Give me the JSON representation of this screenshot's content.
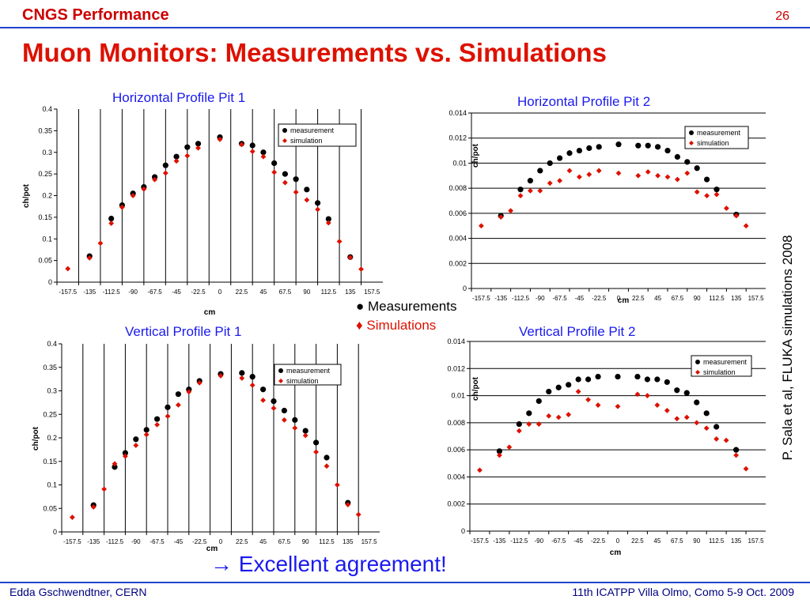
{
  "header": {
    "title": "CNGS Performance",
    "page_number": "26"
  },
  "main_title": "Muon Monitors: Measurements vs. Simulations",
  "key": {
    "measurements": "Measurements",
    "simulations": "Simulations",
    "measurements_color": "#000000",
    "simulations_color": "#dd1100"
  },
  "conclusion": "Excellent agreement!",
  "side_reference": "P. Sala et al, FLUKA simulations 2008",
  "footer": {
    "left": "Edda Gschwendtner, CERN",
    "right": "11th ICATPP Villa Olmo, Como 5-9 Oct. 2009"
  },
  "chart_data": [
    {
      "type": "scatter",
      "title": "Horizontal Profile Pit 1",
      "xlabel": "cm",
      "ylabel": "ch/pot",
      "categories": [
        "-157.5",
        "-135",
        "-112.5",
        "-90",
        "-67.5",
        "-45",
        "-22.5",
        "0",
        "22.5",
        "45",
        "67.5",
        "90",
        "112.5",
        "135",
        "157.5"
      ],
      "ylim": [
        0,
        0.4
      ],
      "yticks": [
        "0",
        "0.05",
        "0.1",
        "0.15",
        "0.2",
        "0.25",
        "0.3",
        "0.35",
        "0.4"
      ],
      "grid": "vertical",
      "legend": "top-right",
      "series": [
        {
          "name": "measurement",
          "x": [
            -135,
            -112.5,
            -101.25,
            -90,
            -78.75,
            -67.5,
            -56.25,
            -45,
            -33.75,
            -22.5,
            0,
            22.5,
            33.75,
            45,
            56.25,
            67.5,
            78.75,
            90,
            101.25,
            112.5,
            135
          ],
          "y": [
            0.06,
            0.147,
            0.178,
            0.205,
            0.22,
            0.243,
            0.27,
            0.29,
            0.312,
            0.32,
            0.335,
            0.32,
            0.316,
            0.3,
            0.275,
            0.25,
            0.238,
            0.214,
            0.183,
            0.146,
            0.058
          ]
        },
        {
          "name": "simulation",
          "x": [
            -157.5,
            -135,
            -123.75,
            -112.5,
            -101.25,
            -90,
            -78.75,
            -67.5,
            -56.25,
            -45,
            -33.75,
            -22.5,
            0,
            22.5,
            33.75,
            45,
            56.25,
            67.5,
            78.75,
            90,
            101.25,
            112.5,
            123.75,
            135,
            146.25
          ],
          "y": [
            0.031,
            0.056,
            0.09,
            0.136,
            0.173,
            0.2,
            0.215,
            0.237,
            0.252,
            0.28,
            0.292,
            0.31,
            0.33,
            0.318,
            0.302,
            0.29,
            0.254,
            0.23,
            0.208,
            0.19,
            0.168,
            0.137,
            0.094,
            0.057,
            0.03
          ]
        }
      ]
    },
    {
      "type": "scatter",
      "title": "Horizontal Profile Pit 2",
      "xlabel": "cm",
      "ylabel": "ch/pot",
      "categories": [
        "-157.5",
        "-135",
        "-112.5",
        "-90",
        "-67.5",
        "-45",
        "-22.5",
        "0",
        "22.5",
        "45",
        "67.5",
        "90",
        "112.5",
        "135",
        "157.5"
      ],
      "ylim": [
        0,
        0.014
      ],
      "yticks": [
        "0",
        "0.002",
        "0.004",
        "0.006",
        "0.008",
        "0.01",
        "0.012",
        "0.014"
      ],
      "grid": "horizontal",
      "legend": "top-right",
      "series": [
        {
          "name": "measurement",
          "x": [
            -135,
            -112.5,
            -101.25,
            -90,
            -78.75,
            -67.5,
            -56.25,
            -45,
            -33.75,
            -22.5,
            0,
            22.5,
            33.75,
            45,
            56.25,
            67.5,
            78.75,
            90,
            101.25,
            112.5,
            135
          ],
          "y": [
            0.0058,
            0.0079,
            0.0086,
            0.0094,
            0.01,
            0.0104,
            0.0108,
            0.011,
            0.0112,
            0.0113,
            0.0115,
            0.0114,
            0.0114,
            0.0113,
            0.011,
            0.0105,
            0.0101,
            0.0096,
            0.0087,
            0.0079,
            0.0059
          ]
        },
        {
          "name": "simulation",
          "x": [
            -157.5,
            -135,
            -123.75,
            -112.5,
            -101.25,
            -90,
            -78.75,
            -67.5,
            -56.25,
            -45,
            -33.75,
            -22.5,
            0,
            22.5,
            33.75,
            45,
            56.25,
            67.5,
            78.75,
            90,
            101.25,
            112.5,
            123.75,
            135,
            146.25
          ],
          "y": [
            0.005,
            0.0057,
            0.0062,
            0.0074,
            0.0078,
            0.0078,
            0.0084,
            0.0086,
            0.0094,
            0.0089,
            0.0091,
            0.0094,
            0.0092,
            0.009,
            0.0093,
            0.009,
            0.0089,
            0.0087,
            0.0092,
            0.0077,
            0.0074,
            0.0075,
            0.0064,
            0.0058,
            0.005
          ]
        }
      ]
    },
    {
      "type": "scatter",
      "title": "Vertical Profile Pit 1",
      "xlabel": "cm",
      "ylabel": "ch/pot",
      "categories": [
        "-157.5",
        "-135",
        "-112.5",
        "-90",
        "-67.5",
        "-45",
        "-22.5",
        "0",
        "22.5",
        "45",
        "67.5",
        "90",
        "112.5",
        "135",
        "157.5"
      ],
      "ylim": [
        0,
        0.4
      ],
      "yticks": [
        "0",
        "0.05",
        "0.1",
        "0.15",
        "0.2",
        "0.25",
        "0.3",
        "0.35",
        "0.4"
      ],
      "grid": "vertical",
      "legend": "top-right",
      "series": [
        {
          "name": "measurement",
          "x": [
            -135,
            -112.5,
            -101.25,
            -90,
            -78.75,
            -67.5,
            -56.25,
            -45,
            -33.75,
            -22.5,
            0,
            22.5,
            33.75,
            45,
            56.25,
            67.5,
            78.75,
            90,
            101.25,
            112.5,
            135
          ],
          "y": [
            0.057,
            0.138,
            0.168,
            0.197,
            0.217,
            0.24,
            0.265,
            0.293,
            0.303,
            0.321,
            0.336,
            0.338,
            0.33,
            0.303,
            0.278,
            0.258,
            0.238,
            0.215,
            0.19,
            0.158,
            0.062
          ]
        },
        {
          "name": "simulation",
          "x": [
            -157.5,
            -135,
            -123.75,
            -112.5,
            -101.25,
            -90,
            -78.75,
            -67.5,
            -56.25,
            -45,
            -33.75,
            -22.5,
            0,
            22.5,
            33.75,
            45,
            56.25,
            67.5,
            78.75,
            90,
            101.25,
            112.5,
            123.75,
            135,
            146.25
          ],
          "y": [
            0.031,
            0.053,
            0.091,
            0.145,
            0.161,
            0.184,
            0.207,
            0.228,
            0.246,
            0.27,
            0.298,
            0.317,
            0.332,
            0.327,
            0.312,
            0.28,
            0.263,
            0.238,
            0.221,
            0.205,
            0.17,
            0.14,
            0.1,
            0.058,
            0.037
          ]
        }
      ]
    },
    {
      "type": "scatter",
      "title": "Vertical Profile Pit 2",
      "xlabel": "cm",
      "ylabel": "ch/pot",
      "categories": [
        "-157.5",
        "-135",
        "-112.5",
        "-90",
        "-67.5",
        "-45",
        "-22.5",
        "0",
        "22.5",
        "45",
        "67.5",
        "90",
        "112.5",
        "135",
        "157.5"
      ],
      "ylim": [
        0,
        0.014
      ],
      "yticks": [
        "0",
        "0.002",
        "0.004",
        "0.006",
        "0.008",
        "0.01",
        "0.012",
        "0.014"
      ],
      "grid": "horizontal",
      "legend": "top-right",
      "series": [
        {
          "name": "measurement",
          "x": [
            -135,
            -112.5,
            -101.25,
            -90,
            -78.75,
            -67.5,
            -56.25,
            -45,
            -33.75,
            -22.5,
            0,
            22.5,
            33.75,
            45,
            56.25,
            67.5,
            78.75,
            90,
            101.25,
            112.5,
            135
          ],
          "y": [
            0.0059,
            0.0079,
            0.0087,
            0.0096,
            0.0103,
            0.0106,
            0.0108,
            0.0112,
            0.0112,
            0.0114,
            0.0114,
            0.0114,
            0.0112,
            0.0112,
            0.011,
            0.0104,
            0.0102,
            0.0095,
            0.0087,
            0.0077,
            0.006
          ]
        },
        {
          "name": "simulation",
          "x": [
            -157.5,
            -135,
            -123.75,
            -112.5,
            -101.25,
            -90,
            -78.75,
            -67.5,
            -56.25,
            -45,
            -33.75,
            -22.5,
            0,
            22.5,
            33.75,
            45,
            56.25,
            67.5,
            78.75,
            90,
            101.25,
            112.5,
            123.75,
            135,
            146.25
          ],
          "y": [
            0.0045,
            0.0056,
            0.0062,
            0.0074,
            0.0079,
            0.0079,
            0.0085,
            0.0084,
            0.0086,
            0.0103,
            0.0097,
            0.0093,
            0.0092,
            0.0101,
            0.01,
            0.0093,
            0.0089,
            0.0083,
            0.0084,
            0.008,
            0.0076,
            0.0068,
            0.0067,
            0.0056,
            0.0046
          ]
        }
      ]
    }
  ]
}
